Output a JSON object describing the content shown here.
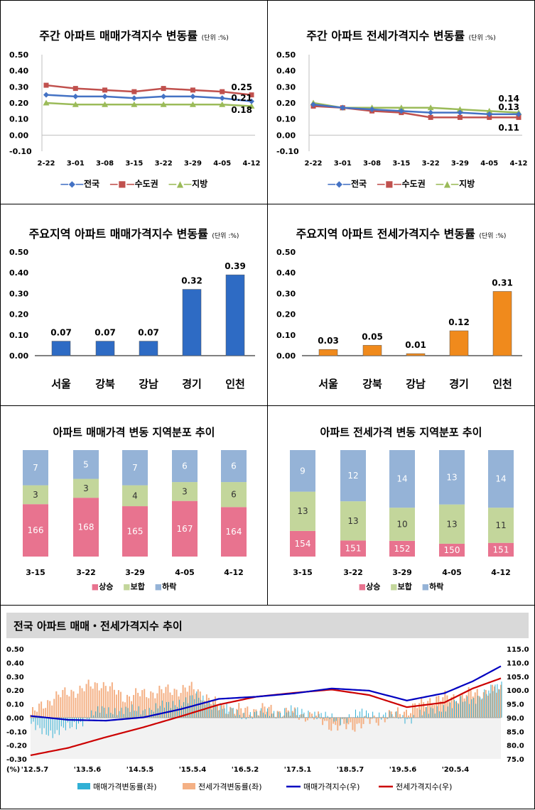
{
  "panels": {
    "weekly_sale": {
      "title": "주간 아파트 매매가격지수 변동률",
      "unit": "(단위 :%)",
      "legend": [
        "전국",
        "수도권",
        "지방"
      ]
    },
    "weekly_jeonse": {
      "title": "주간 아파트 전세가격지수 변동률",
      "unit": "(단위 :%)",
      "legend": [
        "전국",
        "수도권",
        "지방"
      ]
    },
    "region_sale": {
      "title": "주요지역 아파트 매매가격지수 변동률",
      "unit": "(단위 :%)"
    },
    "region_jeonse": {
      "title": "주요지역 아파트 전세가격지수 변동률",
      "unit": "(단위 :%)"
    },
    "dist_sale": {
      "title": "아파트 매매가격 변동 지역분포 추이",
      "legend": [
        "상승",
        "보합",
        "하락"
      ]
    },
    "dist_jeonse": {
      "title": "아파트 전세가격 변동 지역분포 추이",
      "legend": [
        "상승",
        "보합",
        "하락"
      ]
    },
    "trend": {
      "title": "전국 아파트 매매・전세가격지수 추이",
      "pct_label": "(%)",
      "legend": [
        "매매가격변동률(좌)",
        "전세가격변동률(좌)",
        "매매가격지수(우)",
        "전세가격지수(우)"
      ]
    }
  },
  "colors": {
    "national": "#4472c4",
    "capital": "#c0504d",
    "local": "#9bbb59",
    "sale_bar": "#2e6bc4",
    "jeonse_bar": "#f08a1c",
    "rise": "#e8738f",
    "flat": "#c3d69b",
    "fall": "#95b3d7",
    "sale_idx": "#0000c0",
    "jeonse_idx": "#cc0000",
    "sale_chg": "#31b0d5",
    "jeonse_chg": "#f4b084"
  },
  "chart_data": [
    {
      "id": "weekly_sale",
      "type": "line",
      "title": "주간 아파트 매매가격지수 변동률",
      "x": [
        "2-22",
        "3-01",
        "3-08",
        "3-15",
        "3-22",
        "3-29",
        "4-05",
        "4-12"
      ],
      "y_ticks": [
        "0.50",
        "0.40",
        "0.30",
        "0.20",
        "0.10",
        "0.00",
        "-0.10"
      ],
      "ylim": [
        -0.1,
        0.5
      ],
      "series": [
        {
          "name": "전국",
          "values": [
            0.25,
            0.24,
            0.24,
            0.23,
            0.24,
            0.24,
            0.23,
            0.21
          ]
        },
        {
          "name": "수도권",
          "values": [
            0.31,
            0.29,
            0.28,
            0.27,
            0.29,
            0.28,
            0.27,
            0.25
          ]
        },
        {
          "name": "지방",
          "values": [
            0.2,
            0.19,
            0.19,
            0.19,
            0.19,
            0.19,
            0.19,
            0.18
          ]
        }
      ],
      "end_labels": [
        "0.25",
        "0.21",
        "0.18"
      ]
    },
    {
      "id": "weekly_jeonse",
      "type": "line",
      "title": "주간 아파트 전세가격지수 변동률",
      "x": [
        "2-22",
        "3-01",
        "3-08",
        "3-15",
        "3-22",
        "3-29",
        "4-05",
        "4-12"
      ],
      "y_ticks": [
        "0.50",
        "0.40",
        "0.30",
        "0.20",
        "0.10",
        "0.00",
        "-0.10"
      ],
      "ylim": [
        -0.1,
        0.5
      ],
      "series": [
        {
          "name": "전국",
          "values": [
            0.19,
            0.17,
            0.16,
            0.15,
            0.14,
            0.14,
            0.13,
            0.13
          ]
        },
        {
          "name": "수도권",
          "values": [
            0.18,
            0.17,
            0.15,
            0.14,
            0.11,
            0.11,
            0.11,
            0.11
          ]
        },
        {
          "name": "지방",
          "values": [
            0.2,
            0.17,
            0.17,
            0.17,
            0.17,
            0.16,
            0.15,
            0.14
          ]
        }
      ],
      "end_labels": [
        "0.14",
        "0.13",
        "0.11"
      ]
    },
    {
      "id": "region_sale",
      "type": "bar",
      "title": "주요지역 아파트 매매가격지수 변동률",
      "categories": [
        "서울",
        "강북",
        "강남",
        "경기",
        "인천"
      ],
      "values": [
        0.07,
        0.07,
        0.07,
        0.32,
        0.39
      ],
      "labels": [
        "0.07",
        "0.07",
        "0.07",
        "0.32",
        "0.39"
      ],
      "y_ticks": [
        "0.50",
        "0.40",
        "0.30",
        "0.20",
        "0.10",
        "0.00"
      ],
      "ylim": [
        0,
        0.5
      ]
    },
    {
      "id": "region_jeonse",
      "type": "bar",
      "title": "주요지역 아파트 전세가격지수 변동률",
      "categories": [
        "서울",
        "강북",
        "강남",
        "경기",
        "인천"
      ],
      "values": [
        0.03,
        0.05,
        0.01,
        0.12,
        0.31
      ],
      "labels": [
        "0.03",
        "0.05",
        "0.01",
        "0.12",
        "0.31"
      ],
      "y_ticks": [
        "0.50",
        "0.40",
        "0.30",
        "0.20",
        "0.10",
        "0.00"
      ],
      "ylim": [
        0,
        0.5
      ]
    },
    {
      "id": "dist_sale",
      "type": "bar",
      "stacked": true,
      "title": "아파트 매매가격 변동 지역분포 추이",
      "categories": [
        "3-15",
        "3-22",
        "3-29",
        "4-05",
        "4-12"
      ],
      "series": [
        {
          "name": "상승",
          "values": [
            166,
            168,
            165,
            167,
            164
          ]
        },
        {
          "name": "보합",
          "values": [
            3,
            3,
            4,
            3,
            6
          ]
        },
        {
          "name": "하락",
          "values": [
            7,
            5,
            7,
            6,
            6
          ]
        }
      ]
    },
    {
      "id": "dist_jeonse",
      "type": "bar",
      "stacked": true,
      "title": "아파트 전세가격 변동 지역분포 추이",
      "categories": [
        "3-15",
        "3-22",
        "3-29",
        "4-05",
        "4-12"
      ],
      "series": [
        {
          "name": "상승",
          "values": [
            154,
            151,
            152,
            150,
            151
          ]
        },
        {
          "name": "보합",
          "values": [
            13,
            13,
            10,
            13,
            11
          ]
        },
        {
          "name": "하락",
          "values": [
            9,
            12,
            14,
            13,
            14
          ]
        }
      ]
    },
    {
      "id": "trend",
      "type": "line",
      "title": "전국 아파트 매매・전세가격지수 추이",
      "x_ticks": [
        "'12.5.7",
        "'13.5.6",
        "'14.5.5",
        "'15.5.4",
        "'16.5.2",
        "'17.5.1",
        "'18.5.7",
        "'19.5.6",
        "'20.5.4"
      ],
      "y_left_ticks": [
        "0.50",
        "0.40",
        "0.30",
        "0.20",
        "0.10",
        "0.00",
        "-0.10",
        "-0.20",
        "-0.30"
      ],
      "y_left_lim": [
        -0.3,
        0.5
      ],
      "y_right_ticks": [
        "115.0",
        "110.0",
        "105.0",
        "100.0",
        "95.0",
        "90.0",
        "85.0",
        "80.0",
        "75.0"
      ],
      "y_right_lim": [
        75,
        115
      ],
      "series": [
        {
          "name": "매매가격지수(우)",
          "x": [
            0,
            0.08,
            0.16,
            0.24,
            0.32,
            0.4,
            0.48,
            0.56,
            0.64,
            0.72,
            0.8,
            0.88,
            0.94,
            1.0
          ],
          "values": [
            90.6,
            89.2,
            88.9,
            90.1,
            93.1,
            96.8,
            97.6,
            98.8,
            100.6,
            99.8,
            96.2,
            98.9,
            103.2,
            108.7
          ]
        },
        {
          "name": "전세가격지수(우)",
          "x": [
            0,
            0.08,
            0.16,
            0.24,
            0.32,
            0.4,
            0.48,
            0.56,
            0.64,
            0.72,
            0.8,
            0.88,
            0.94,
            1.0
          ],
          "values": [
            76.3,
            79.0,
            82.9,
            86.5,
            90.5,
            94.7,
            97.6,
            99.0,
            100.2,
            98.2,
            93.8,
            95.5,
            100.6,
            104.3
          ]
        },
        {
          "name": "매매가격변동률(좌)",
          "x": [
            0,
            0.05,
            0.1,
            0.15,
            0.2,
            0.25,
            0.3,
            0.35,
            0.4,
            0.45,
            0.5,
            0.55,
            0.6,
            0.65,
            0.7,
            0.75,
            0.8,
            0.85,
            0.9,
            0.95,
            1.0
          ],
          "values": [
            -0.06,
            -0.12,
            -0.04,
            0.06,
            0.05,
            0.06,
            0.1,
            0.15,
            0.08,
            0.02,
            0.03,
            0.05,
            0.03,
            -0.02,
            0.03,
            0.02,
            -0.01,
            0.05,
            0.1,
            0.15,
            0.24
          ]
        },
        {
          "name": "전세가격변동률(좌)",
          "x": [
            0,
            0.05,
            0.1,
            0.15,
            0.2,
            0.25,
            0.3,
            0.35,
            0.4,
            0.45,
            0.5,
            0.55,
            0.6,
            0.65,
            0.7,
            0.75,
            0.8,
            0.85,
            0.9,
            0.95,
            1.0
          ],
          "values": [
            0.02,
            0.15,
            0.2,
            0.25,
            0.15,
            0.18,
            0.2,
            0.21,
            0.08,
            0.05,
            0.06,
            0.03,
            0.01,
            -0.07,
            -0.05,
            0.0,
            0.05,
            0.13,
            0.15,
            0.18,
            0.2
          ]
        }
      ]
    }
  ]
}
